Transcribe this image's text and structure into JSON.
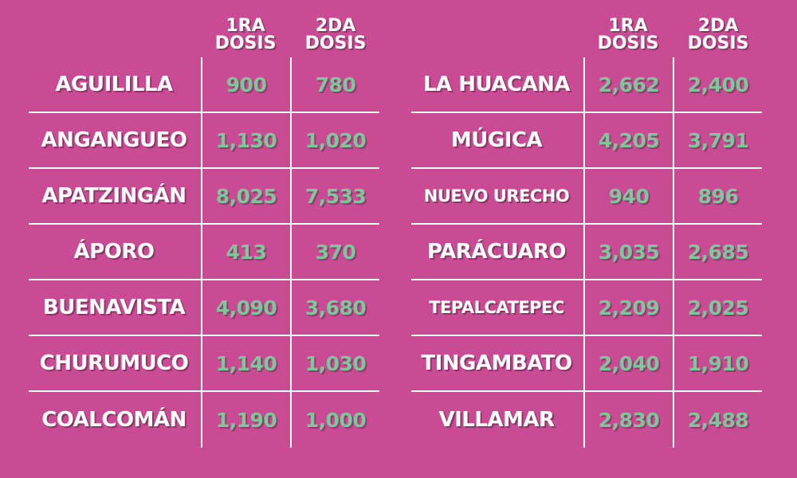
{
  "colors": {
    "background": "#c94b94",
    "name_text": "#ffffff",
    "value_text": "#7ec79a",
    "grid_lines": "#ffffff"
  },
  "left_table": {
    "header": {
      "col1_line1": "1RA",
      "col1_line2": "DOSIS",
      "col2_line1": "2DA",
      "col2_line2": "DOSIS"
    },
    "rows": [
      {
        "name": "AGUILILLA",
        "dose1": "900",
        "dose2": "780"
      },
      {
        "name": "ANGANGUEO",
        "dose1": "1,130",
        "dose2": "1,020"
      },
      {
        "name": "APATZINGÁN",
        "dose1": "8,025",
        "dose2": "7,533"
      },
      {
        "name": "ÁPORO",
        "dose1": "413",
        "dose2": "370"
      },
      {
        "name": "BUENAVISTA",
        "dose1": "4,090",
        "dose2": "3,680"
      },
      {
        "name": "CHURUMUCO",
        "dose1": "1,140",
        "dose2": "1,030"
      },
      {
        "name": "COALCOMÁN",
        "dose1": "1,190",
        "dose2": "1,000"
      }
    ]
  },
  "right_table": {
    "header": {
      "col1_line1": "1RA",
      "col1_line2": "DOSIS",
      "col2_line1": "2DA",
      "col2_line2": "DOSIS"
    },
    "rows": [
      {
        "name": "LA HUACANA",
        "dose1": "2,662",
        "dose2": "2,400"
      },
      {
        "name": "MÚGICA",
        "dose1": "4,205",
        "dose2": "3,791"
      },
      {
        "name": "NUEVO URECHO",
        "dose1": "940",
        "dose2": "896"
      },
      {
        "name": "PARÁCUARO",
        "dose1": "3,035",
        "dose2": "2,685"
      },
      {
        "name": "TEPALCATEPEC",
        "dose1": "2,209",
        "dose2": "2,025"
      },
      {
        "name": "TINGAMBATO",
        "dose1": "2,040",
        "dose2": "1,910"
      },
      {
        "name": "VILLAMAR",
        "dose1": "2,830",
        "dose2": "2,488"
      }
    ]
  }
}
